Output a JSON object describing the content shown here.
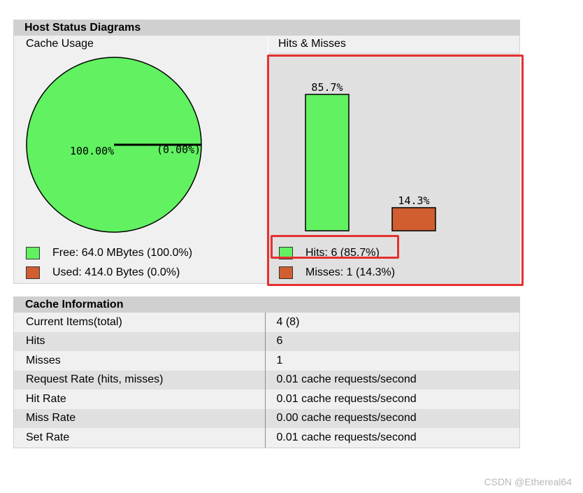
{
  "host_status": {
    "title": "Host Status Diagrams",
    "cache_usage": {
      "title": "Cache Usage",
      "pie_labels": [
        "100.00%",
        "(0.00%)"
      ],
      "legend": [
        {
          "label": "Free: 64.0 MBytes (100.0%)",
          "color": "#61f161"
        },
        {
          "label": "Used: 414.0 Bytes (0.0%)",
          "color": "#d05e30"
        }
      ]
    },
    "hits_misses": {
      "title": "Hits & Misses",
      "legend": [
        {
          "label": "Hits: 6 (85.7%)",
          "color": "#61f161"
        },
        {
          "label": "Misses: 1 (14.3%)",
          "color": "#d05e30"
        }
      ]
    }
  },
  "chart_data": [
    {
      "type": "pie",
      "title": "Cache Usage",
      "categories": [
        "Free",
        "Used"
      ],
      "values": [
        100.0,
        0.0
      ],
      "labels": [
        "100.00%",
        "(0.00%)"
      ],
      "colors": [
        "#61f161",
        "#d05e30"
      ]
    },
    {
      "type": "bar",
      "title": "Hits & Misses",
      "categories": [
        "Hits",
        "Misses"
      ],
      "values": [
        85.7,
        14.3
      ],
      "labels": [
        "85.7%",
        "14.3%"
      ],
      "colors": [
        "#61f161",
        "#d05e30"
      ]
    }
  ],
  "cache_info": {
    "title": "Cache Information",
    "rows": [
      {
        "key": "Current Items(total)",
        "value": "4 (8)"
      },
      {
        "key": "Hits",
        "value": "6"
      },
      {
        "key": "Misses",
        "value": "1"
      },
      {
        "key": "Request Rate (hits, misses)",
        "value": "0.01 cache requests/second"
      },
      {
        "key": "Hit Rate",
        "value": "0.01 cache requests/second"
      },
      {
        "key": "Miss Rate",
        "value": "0.00 cache requests/second"
      },
      {
        "key": "Set Rate",
        "value": "0.01 cache requests/second"
      }
    ]
  },
  "watermark": "CSDN @Ethereal64"
}
